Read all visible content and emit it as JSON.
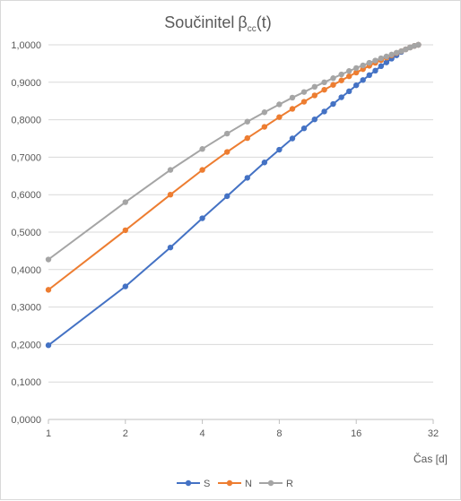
{
  "chart_data": {
    "type": "line",
    "title": "Součinitel",
    "title_symbol": "β",
    "title_subscript": "cc",
    "title_suffix": "(t)",
    "xlabel": "Čas [d]",
    "ylabel": "",
    "x_scale": "log2",
    "xlim": [
      1,
      32
    ],
    "ylim": [
      0,
      1
    ],
    "x_ticks": [
      1,
      2,
      4,
      8,
      16,
      32
    ],
    "x_tick_labels": [
      "1",
      "2",
      "4",
      "8",
      "16",
      "32"
    ],
    "y_ticks": [
      0,
      0.1,
      0.2,
      0.3,
      0.4,
      0.5,
      0.6,
      0.7,
      0.8,
      0.9,
      1.0
    ],
    "y_tick_labels": [
      "0,0000",
      "0,1000",
      "0,2000",
      "0,3000",
      "0,4000",
      "0,5000",
      "0,6000",
      "0,7000",
      "0,8000",
      "0,9000",
      "1,0000"
    ],
    "grid": "horizontal",
    "legend_position": "bottom",
    "x": [
      1,
      2,
      3,
      4,
      5,
      6,
      7,
      8,
      9,
      10,
      11,
      12,
      13,
      14,
      15,
      16,
      17,
      18,
      19,
      20,
      21,
      22,
      23,
      24,
      25,
      26,
      27,
      28
    ],
    "series": [
      {
        "name": "S",
        "color": "#4472c4",
        "values": [
          0.198,
          0.355,
          0.459,
          0.537,
          0.596,
          0.645,
          0.686,
          0.72,
          0.75,
          0.777,
          0.801,
          0.822,
          0.842,
          0.86,
          0.876,
          0.892,
          0.906,
          0.919,
          0.931,
          0.943,
          0.953,
          0.963,
          0.972,
          0.981,
          0.988,
          0.993,
          0.997,
          1.0
        ]
      },
      {
        "name": "N",
        "color": "#ed7d31",
        "values": [
          0.346,
          0.505,
          0.6,
          0.666,
          0.714,
          0.751,
          0.781,
          0.807,
          0.829,
          0.848,
          0.865,
          0.88,
          0.893,
          0.905,
          0.916,
          0.926,
          0.935,
          0.944,
          0.952,
          0.959,
          0.966,
          0.972,
          0.978,
          0.983,
          0.988,
          0.993,
          0.997,
          1.0
        ]
      },
      {
        "name": "R",
        "color": "#a5a5a5",
        "values": [
          0.427,
          0.58,
          0.666,
          0.722,
          0.763,
          0.795,
          0.82,
          0.841,
          0.859,
          0.874,
          0.888,
          0.9,
          0.911,
          0.921,
          0.93,
          0.938,
          0.945,
          0.952,
          0.958,
          0.964,
          0.969,
          0.974,
          0.979,
          0.983,
          0.988,
          0.993,
          0.997,
          1.0
        ]
      }
    ]
  }
}
